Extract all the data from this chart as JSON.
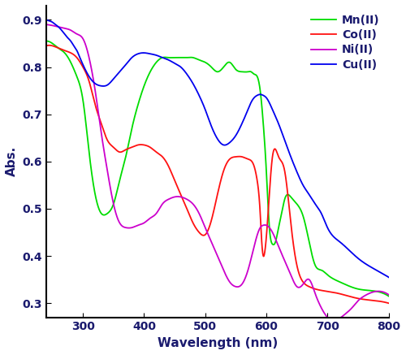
{
  "title": "",
  "xlabel": "Wavelength (nm)",
  "ylabel": "Abs.",
  "xlim": [
    240,
    800
  ],
  "ylim": [
    0.27,
    0.93
  ],
  "yticks": [
    0.3,
    0.4,
    0.5,
    0.6,
    0.7,
    0.8,
    0.9
  ],
  "xticks": [
    300,
    400,
    500,
    600,
    700,
    800
  ],
  "legend": [
    "Mn(II)",
    "Co(II)",
    "Ni(II)",
    "Cu(II)"
  ],
  "colors": {
    "Mn": "#00dd00",
    "Co": "#ff1111",
    "Ni": "#cc00cc",
    "Cu": "#0000ee"
  },
  "Mn_x": [
    240,
    250,
    260,
    270,
    280,
    290,
    300,
    310,
    320,
    330,
    340,
    350,
    360,
    370,
    380,
    390,
    400,
    410,
    420,
    430,
    440,
    450,
    460,
    470,
    480,
    490,
    500,
    510,
    520,
    530,
    540,
    550,
    560,
    570,
    575,
    580,
    585,
    590,
    595,
    600,
    605,
    610,
    615,
    620,
    625,
    630,
    635,
    640,
    650,
    660,
    670,
    680,
    690,
    700,
    720,
    750,
    780,
    800
  ],
  "Mn_y": [
    0.855,
    0.85,
    0.84,
    0.83,
    0.81,
    0.78,
    0.73,
    0.62,
    0.53,
    0.49,
    0.49,
    0.51,
    0.56,
    0.61,
    0.67,
    0.72,
    0.76,
    0.79,
    0.81,
    0.82,
    0.82,
    0.82,
    0.82,
    0.82,
    0.82,
    0.815,
    0.81,
    0.8,
    0.79,
    0.8,
    0.81,
    0.795,
    0.79,
    0.79,
    0.79,
    0.785,
    0.78,
    0.75,
    0.68,
    0.58,
    0.46,
    0.425,
    0.43,
    0.46,
    0.49,
    0.52,
    0.53,
    0.525,
    0.51,
    0.485,
    0.43,
    0.38,
    0.37,
    0.36,
    0.345,
    0.33,
    0.325,
    0.315
  ],
  "Co_x": [
    240,
    250,
    260,
    270,
    280,
    290,
    300,
    310,
    320,
    330,
    340,
    350,
    360,
    370,
    380,
    390,
    400,
    410,
    420,
    430,
    440,
    450,
    460,
    470,
    480,
    490,
    500,
    510,
    520,
    530,
    540,
    550,
    560,
    570,
    580,
    585,
    590,
    592,
    595,
    597,
    600,
    610,
    620,
    630,
    640,
    650,
    660,
    670,
    680,
    700,
    720,
    750,
    780,
    800
  ],
  "Co_y": [
    0.845,
    0.845,
    0.84,
    0.835,
    0.83,
    0.82,
    0.8,
    0.77,
    0.72,
    0.68,
    0.645,
    0.63,
    0.62,
    0.625,
    0.63,
    0.635,
    0.635,
    0.63,
    0.62,
    0.61,
    0.59,
    0.56,
    0.53,
    0.5,
    0.47,
    0.45,
    0.445,
    0.475,
    0.53,
    0.58,
    0.605,
    0.61,
    0.61,
    0.605,
    0.59,
    0.56,
    0.49,
    0.44,
    0.4,
    0.405,
    0.44,
    0.61,
    0.61,
    0.58,
    0.47,
    0.38,
    0.345,
    0.335,
    0.33,
    0.325,
    0.32,
    0.31,
    0.305,
    0.3
  ],
  "Ni_x": [
    240,
    250,
    260,
    270,
    280,
    290,
    300,
    310,
    320,
    330,
    340,
    350,
    360,
    370,
    380,
    390,
    400,
    410,
    420,
    430,
    440,
    450,
    460,
    470,
    480,
    490,
    500,
    510,
    520,
    530,
    540,
    550,
    560,
    570,
    580,
    590,
    595,
    600,
    605,
    610,
    620,
    630,
    640,
    650,
    660,
    670,
    680,
    690,
    700,
    710,
    720,
    730,
    740,
    750,
    760,
    780,
    800
  ],
  "Ni_y": [
    0.89,
    0.888,
    0.885,
    0.882,
    0.878,
    0.87,
    0.86,
    0.82,
    0.75,
    0.66,
    0.58,
    0.51,
    0.47,
    0.46,
    0.46,
    0.465,
    0.47,
    0.48,
    0.49,
    0.51,
    0.52,
    0.525,
    0.525,
    0.52,
    0.51,
    0.49,
    0.46,
    0.43,
    0.4,
    0.37,
    0.345,
    0.335,
    0.34,
    0.37,
    0.42,
    0.46,
    0.465,
    0.465,
    0.46,
    0.45,
    0.42,
    0.39,
    0.36,
    0.335,
    0.34,
    0.35,
    0.32,
    0.29,
    0.27,
    0.263,
    0.268,
    0.278,
    0.29,
    0.305,
    0.315,
    0.325,
    0.318
  ],
  "Cu_x": [
    240,
    245,
    250,
    255,
    260,
    265,
    270,
    275,
    280,
    285,
    290,
    295,
    300,
    310,
    320,
    330,
    340,
    350,
    360,
    370,
    380,
    390,
    400,
    410,
    420,
    430,
    440,
    450,
    460,
    470,
    480,
    490,
    500,
    510,
    520,
    530,
    540,
    550,
    560,
    570,
    575,
    580,
    585,
    590,
    595,
    600,
    610,
    620,
    630,
    640,
    650,
    660,
    670,
    680,
    690,
    700,
    720,
    750,
    780,
    800
  ],
  "Cu_y": [
    0.9,
    0.898,
    0.895,
    0.89,
    0.885,
    0.878,
    0.87,
    0.862,
    0.855,
    0.845,
    0.835,
    0.82,
    0.805,
    0.78,
    0.765,
    0.76,
    0.762,
    0.775,
    0.79,
    0.805,
    0.82,
    0.828,
    0.83,
    0.828,
    0.825,
    0.82,
    0.815,
    0.808,
    0.8,
    0.785,
    0.765,
    0.74,
    0.71,
    0.675,
    0.648,
    0.635,
    0.64,
    0.655,
    0.68,
    0.71,
    0.725,
    0.735,
    0.74,
    0.742,
    0.74,
    0.735,
    0.71,
    0.68,
    0.645,
    0.61,
    0.578,
    0.55,
    0.53,
    0.51,
    0.49,
    0.46,
    0.43,
    0.395,
    0.37,
    0.355
  ]
}
